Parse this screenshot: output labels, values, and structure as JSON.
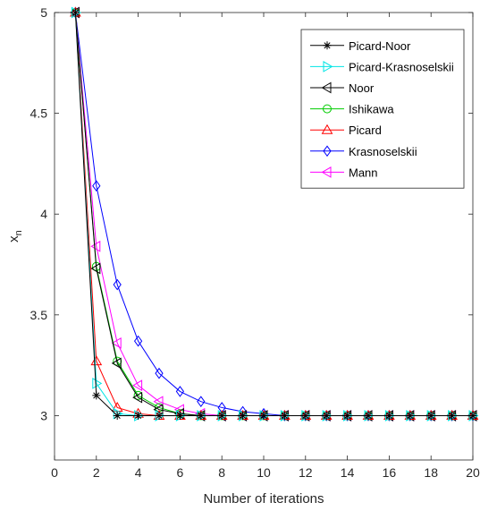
{
  "chart_data": {
    "type": "line",
    "title": "",
    "xlabel": "Number of iterations",
    "ylabel": "x",
    "ylabel_subscript": "n",
    "xlim": [
      0,
      20
    ],
    "ylim": [
      2.78,
      5
    ],
    "x_ticks": [
      0,
      2,
      4,
      6,
      8,
      10,
      12,
      14,
      16,
      18,
      20
    ],
    "y_ticks": [
      3,
      3.5,
      4,
      4.5,
      5
    ],
    "y_tick_labels": [
      "3",
      "3.5",
      "4",
      "4.5",
      "5"
    ],
    "grid": false,
    "legend_position": "top-right",
    "x": [
      1,
      2,
      3,
      4,
      5,
      6,
      7,
      8,
      9,
      10,
      11,
      12,
      13,
      14,
      15,
      16,
      17,
      18,
      19,
      20
    ],
    "series": [
      {
        "name": "Krasnoselskii",
        "color": "#0000ff",
        "marker": "diamond",
        "values": [
          5,
          4.14,
          3.65,
          3.37,
          3.21,
          3.12,
          3.07,
          3.04,
          3.02,
          3.01,
          3.0,
          3.0,
          3.0,
          3.0,
          3.0,
          3.0,
          3.0,
          3.0,
          3.0,
          3.0
        ]
      },
      {
        "name": "Mann",
        "color": "#ff00ff",
        "marker": "triangle-left",
        "values": [
          5,
          3.84,
          3.36,
          3.15,
          3.07,
          3.03,
          3.01,
          3.0,
          3.0,
          3.0,
          3.0,
          3.0,
          3.0,
          3.0,
          3.0,
          3.0,
          3.0,
          3.0,
          3.0,
          3.0
        ]
      },
      {
        "name": "Ishikawa",
        "color": "#00cc00",
        "marker": "circle",
        "values": [
          5,
          3.74,
          3.27,
          3.1,
          3.04,
          3.01,
          3.0,
          3.0,
          3.0,
          3.0,
          3.0,
          3.0,
          3.0,
          3.0,
          3.0,
          3.0,
          3.0,
          3.0,
          3.0,
          3.0
        ]
      },
      {
        "name": "Noor",
        "color": "#000000",
        "marker": "triangle-left",
        "values": [
          5,
          3.73,
          3.26,
          3.09,
          3.03,
          3.01,
          3.0,
          3.0,
          3.0,
          3.0,
          3.0,
          3.0,
          3.0,
          3.0,
          3.0,
          3.0,
          3.0,
          3.0,
          3.0,
          3.0
        ]
      },
      {
        "name": "Picard",
        "color": "#ff0000",
        "marker": "triangle-up",
        "values": [
          5,
          3.27,
          3.04,
          3.01,
          3.0,
          3.0,
          3.0,
          3.0,
          3.0,
          3.0,
          3.0,
          3.0,
          3.0,
          3.0,
          3.0,
          3.0,
          3.0,
          3.0,
          3.0,
          3.0
        ]
      },
      {
        "name": "Picard-Krasnoselskii",
        "color": "#00e5e5",
        "marker": "triangle-right",
        "values": [
          5,
          3.16,
          3.01,
          3.0,
          3.0,
          3.0,
          3.0,
          3.0,
          3.0,
          3.0,
          3.0,
          3.0,
          3.0,
          3.0,
          3.0,
          3.0,
          3.0,
          3.0,
          3.0,
          3.0
        ]
      },
      {
        "name": "Picard-Noor",
        "color": "#000000",
        "marker": "asterisk",
        "values": [
          5,
          3.1,
          3.0,
          3.0,
          3.0,
          3.0,
          3.0,
          3.0,
          3.0,
          3.0,
          3.0,
          3.0,
          3.0,
          3.0,
          3.0,
          3.0,
          3.0,
          3.0,
          3.0,
          3.0
        ]
      }
    ],
    "legend_order": [
      "Picard-Noor",
      "Picard-Krasnoselskii",
      "Noor",
      "Ishikawa",
      "Picard",
      "Krasnoselskii",
      "Mann"
    ]
  }
}
